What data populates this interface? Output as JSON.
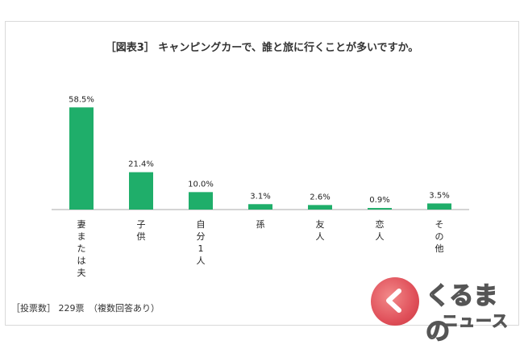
{
  "title": "［図表3］ キャンピングカーで、誰と旅に行くことが多いですか。",
  "footnote": "［投票数］ 229票　（複数回答あり）",
  "logo": {
    "line1": "くるまの",
    "line2": "ニュース"
  },
  "colors": {
    "bar": "#1fae6a",
    "axis": "#aaaaaa"
  },
  "chart_data": {
    "type": "bar",
    "categories": [
      "妻または夫",
      "子供",
      "自分1人",
      "孫",
      "友人",
      "恋人",
      "その他"
    ],
    "values": [
      58.5,
      21.4,
      10.0,
      3.1,
      2.6,
      0.9,
      3.5
    ],
    "value_labels": [
      "58.5%",
      "21.4%",
      "10.0%",
      "3.1%",
      "2.6%",
      "0.9%",
      "3.5%"
    ],
    "category_label_text": [
      "妻\nま\nた\nは\n夫",
      "子\n供",
      "自\n分\n1\n人",
      "孫",
      "友\n人",
      "恋\n人",
      "そ\nの\n他"
    ],
    "ylim": [
      0,
      60
    ],
    "grid": false,
    "legend": "none"
  }
}
